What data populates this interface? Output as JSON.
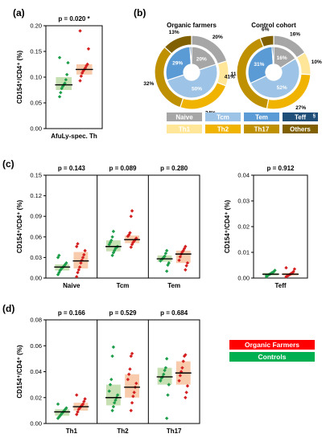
{
  "panels": {
    "a": {
      "label": "(a)",
      "ylabel": "CD154⁺/CD4⁺ (%)",
      "yticks": [
        "0.00",
        "0.05",
        "0.10",
        "0.15",
        "0.20"
      ],
      "ylim": [
        0,
        0.2
      ],
      "groups": [
        {
          "category": "AfuLy-spec. Th",
          "pvalue": "p = 0.020 *",
          "controls": {
            "median": 0.085,
            "q1": 0.075,
            "q3": 0.1,
            "points": [
              0.062,
              0.07,
              0.078,
              0.082,
              0.085,
              0.088,
              0.095,
              0.105,
              0.128,
              0.138
            ]
          },
          "organic": {
            "median": 0.115,
            "q1": 0.105,
            "q3": 0.125,
            "points": [
              0.093,
              0.102,
              0.108,
              0.112,
              0.115,
              0.118,
              0.122,
              0.125,
              0.155,
              0.19
            ]
          }
        }
      ]
    },
    "b": {
      "label": "(b)",
      "donuts": [
        {
          "title": "Organic farmers",
          "inner": [
            {
              "name": "Naive",
              "value": 20
            },
            {
              "name": "Tcm",
              "value": 50
            },
            {
              "name": "Tem",
              "value": 29
            },
            {
              "name": "Teff",
              "value": 1
            }
          ],
          "outer": [
            {
              "name": "Naive",
              "value": 20
            },
            {
              "name": "Th1",
              "value": 11
            },
            {
              "name": "Th2",
              "value": 24
            },
            {
              "name": "Th17",
              "value": 32
            },
            {
              "name": "Others",
              "value": 13
            }
          ],
          "inner_labels": [
            "20%",
            "50%",
            "29%"
          ],
          "outer_labels": [
            "20%",
            "11%",
            "24%",
            "32%",
            "13%"
          ]
        },
        {
          "title": "Control cohort",
          "inner": [
            {
              "name": "Naive",
              "value": 16
            },
            {
              "name": "Tcm",
              "value": 52
            },
            {
              "name": "Tem",
              "value": 31
            },
            {
              "name": "Teff",
              "value": 1
            }
          ],
          "outer": [
            {
              "name": "Naive",
              "value": 16
            },
            {
              "name": "Th1",
              "value": 10
            },
            {
              "name": "Th2",
              "value": 27
            },
            {
              "name": "Th17",
              "value": 41
            },
            {
              "name": "Others",
              "value": 6
            }
          ],
          "inner_labels": [
            "16%",
            "52%",
            "31%"
          ],
          "outer_labels": [
            "16%",
            "10%",
            "27%",
            "41%",
            "6%"
          ]
        }
      ],
      "legend": [
        {
          "name": "Naive",
          "color": "#a6a6a6",
          "text_color": "#ffffff"
        },
        {
          "name": "Tcm",
          "color": "#9dc3e6",
          "text_color": "#ffffff"
        },
        {
          "name": "Tem",
          "color": "#5b9bd5",
          "text_color": "#ffffff"
        },
        {
          "name": "Teff",
          "color": "#1f4e79",
          "text_color": "#ffffff",
          "suffix": "§"
        },
        {
          "name": "Th1",
          "color": "#ffe699",
          "text_color": "#ffffff"
        },
        {
          "name": "Th2",
          "color": "#f0b400",
          "text_color": "#ffffff"
        },
        {
          "name": "Th17",
          "color": "#bf9000",
          "text_color": "#ffffff"
        },
        {
          "name": "Others",
          "color": "#806000",
          "text_color": "#ffffff"
        }
      ]
    },
    "c": {
      "label": "(c)",
      "ylabel": "CD154⁺/CD4⁺ (%)",
      "yticks": [
        "0.00",
        "0.03",
        "0.06",
        "0.09",
        "0.12",
        "0.15"
      ],
      "ylim": [
        0,
        0.15
      ],
      "groups": [
        {
          "category": "Naive",
          "pvalue": "p = 0.143",
          "controls": {
            "median": 0.016,
            "q1": 0.011,
            "q3": 0.02,
            "points": [
              0.005,
              0.008,
              0.011,
              0.013,
              0.015,
              0.016,
              0.018,
              0.02,
              0.022,
              0.03,
              0.033
            ]
          },
          "organic": {
            "median": 0.025,
            "q1": 0.014,
            "q3": 0.038,
            "points": [
              0.002,
              0.008,
              0.012,
              0.016,
              0.022,
              0.026,
              0.03,
              0.034,
              0.04,
              0.046,
              0.05
            ]
          }
        },
        {
          "category": "Tcm",
          "pvalue": "p = 0.089",
          "controls": {
            "median": 0.046,
            "q1": 0.039,
            "q3": 0.055,
            "points": [
              0.033,
              0.037,
              0.04,
              0.043,
              0.045,
              0.046,
              0.049,
              0.052,
              0.055,
              0.06,
              0.068
            ]
          },
          "organic": {
            "median": 0.056,
            "q1": 0.051,
            "q3": 0.062,
            "points": [
              0.045,
              0.049,
              0.052,
              0.054,
              0.056,
              0.058,
              0.061,
              0.063,
              0.066,
              0.09,
              0.098
            ]
          }
        },
        {
          "category": "Tem",
          "pvalue": "p = 0.280",
          "controls": {
            "median": 0.028,
            "q1": 0.024,
            "q3": 0.033,
            "points": [
              0.01,
              0.019,
              0.022,
              0.025,
              0.027,
              0.028,
              0.03,
              0.032,
              0.036,
              0.04
            ]
          },
          "organic": {
            "median": 0.035,
            "q1": 0.022,
            "q3": 0.04,
            "points": [
              0.012,
              0.018,
              0.022,
              0.026,
              0.031,
              0.035,
              0.038,
              0.04,
              0.043,
              0.046
            ]
          }
        }
      ]
    },
    "c_teff": {
      "ylabel": "CD154⁺/CD4⁺ (%)",
      "yticks": [
        "0.00",
        "0.01",
        "0.02",
        "0.03",
        "0.04"
      ],
      "ylim": [
        0,
        0.04
      ],
      "groups": [
        {
          "category": "Teff",
          "pvalue": "p = 0.912",
          "controls": {
            "median": 0.0015,
            "q1": 0.001,
            "q3": 0.002,
            "points": [
              0.0005,
              0.001,
              0.0012,
              0.0015,
              0.0017,
              0.002,
              0.0022,
              0.0025,
              0.003,
              0.001
            ]
          },
          "organic": {
            "median": 0.0015,
            "q1": 0.001,
            "q3": 0.002,
            "points": [
              0.0005,
              0.0008,
              0.001,
              0.0013,
              0.0015,
              0.0018,
              0.002,
              0.0025,
              0.0035,
              0.004
            ]
          }
        }
      ]
    },
    "d": {
      "label": "(d)",
      "ylabel": "CD154⁺/CD4⁺ (%)",
      "yticks": [
        "0.00",
        "0.02",
        "0.04",
        "0.06",
        "0.08"
      ],
      "ylim": [
        0,
        0.08
      ],
      "groups": [
        {
          "category": "Th1",
          "pvalue": "p = 0.166",
          "controls": {
            "median": 0.009,
            "q1": 0.006,
            "q3": 0.011,
            "points": [
              0.004,
              0.005,
              0.006,
              0.007,
              0.008,
              0.009,
              0.01,
              0.011,
              0.012,
              0.015
            ]
          },
          "organic": {
            "median": 0.013,
            "q1": 0.01,
            "q3": 0.016,
            "points": [
              0.007,
              0.009,
              0.011,
              0.012,
              0.013,
              0.014,
              0.015,
              0.017,
              0.019,
              0.022
            ]
          }
        },
        {
          "category": "Th2",
          "pvalue": "p = 0.529",
          "controls": {
            "median": 0.02,
            "q1": 0.014,
            "q3": 0.03,
            "points": [
              0.01,
              0.013,
              0.016,
              0.018,
              0.02,
              0.022,
              0.025,
              0.03,
              0.034,
              0.052,
              0.059
            ]
          },
          "organic": {
            "median": 0.028,
            "q1": 0.02,
            "q3": 0.038,
            "points": [
              0.01,
              0.016,
              0.021,
              0.024,
              0.028,
              0.031,
              0.034,
              0.038,
              0.042,
              0.052,
              0.054
            ]
          }
        },
        {
          "category": "Th17",
          "pvalue": "p = 0.684",
          "controls": {
            "median": 0.036,
            "q1": 0.03,
            "q3": 0.043,
            "points": [
              0.004,
              0.022,
              0.03,
              0.033,
              0.035,
              0.036,
              0.038,
              0.041,
              0.043,
              0.05
            ]
          },
          "organic": {
            "median": 0.039,
            "q1": 0.03,
            "q3": 0.048,
            "points": [
              0.02,
              0.024,
              0.029,
              0.033,
              0.037,
              0.04,
              0.043,
              0.048,
              0.052,
              0.053
            ]
          }
        }
      ]
    }
  },
  "legend": {
    "organic": {
      "label": "Organic Farmers",
      "color": "#ff0000"
    },
    "controls": {
      "label": "Controls",
      "color": "#00b050"
    }
  },
  "colors": {
    "controls_box": "#c6e0b4",
    "controls_point": "#1e9e4a",
    "organic_box": "#f8cbad",
    "organic_point": "#d42020"
  },
  "chart_data": [
    {
      "type": "box",
      "panel": "a",
      "categories": [
        "AfuLy-spec. Th"
      ],
      "ylabel": "CD154⁺/CD4⁺ (%)",
      "ylim": [
        0,
        0.2
      ],
      "series": [
        {
          "name": "Controls",
          "medians": [
            0.085
          ]
        },
        {
          "name": "Organic Farmers",
          "medians": [
            0.115
          ]
        }
      ],
      "annotations": [
        "p = 0.020 *"
      ]
    },
    {
      "type": "pie",
      "panel": "b",
      "title": "Organic farmers",
      "categories": [
        "Naive",
        "Tcm",
        "Tem",
        "Teff",
        "Naive",
        "Th1",
        "Th2",
        "Th17",
        "Others"
      ],
      "values": [
        20,
        50,
        29,
        1,
        20,
        11,
        24,
        32,
        13
      ]
    },
    {
      "type": "pie",
      "panel": "b",
      "title": "Control cohort",
      "categories": [
        "Naive",
        "Tcm",
        "Tem",
        "Teff",
        "Naive",
        "Th1",
        "Th2",
        "Th17",
        "Others"
      ],
      "values": [
        16,
        52,
        31,
        1,
        16,
        10,
        27,
        41,
        6
      ]
    },
    {
      "type": "box",
      "panel": "c",
      "categories": [
        "Naive",
        "Tcm",
        "Tem",
        "Teff"
      ],
      "ylabel": "CD154⁺/CD4⁺ (%)",
      "series": [
        {
          "name": "Controls",
          "medians": [
            0.016,
            0.046,
            0.028,
            0.0015
          ]
        },
        {
          "name": "Organic Farmers",
          "medians": [
            0.025,
            0.056,
            0.035,
            0.0015
          ]
        }
      ],
      "annotations": [
        "p = 0.143",
        "p = 0.089",
        "p = 0.280",
        "p = 0.912"
      ]
    },
    {
      "type": "box",
      "panel": "d",
      "categories": [
        "Th1",
        "Th2",
        "Th17"
      ],
      "ylabel": "CD154⁺/CD4⁺ (%)",
      "ylim": [
        0,
        0.08
      ],
      "series": [
        {
          "name": "Controls",
          "medians": [
            0.009,
            0.02,
            0.036
          ]
        },
        {
          "name": "Organic Farmers",
          "medians": [
            0.013,
            0.028,
            0.039
          ]
        }
      ],
      "annotations": [
        "p = 0.166",
        "p = 0.529",
        "p = 0.684"
      ]
    }
  ]
}
